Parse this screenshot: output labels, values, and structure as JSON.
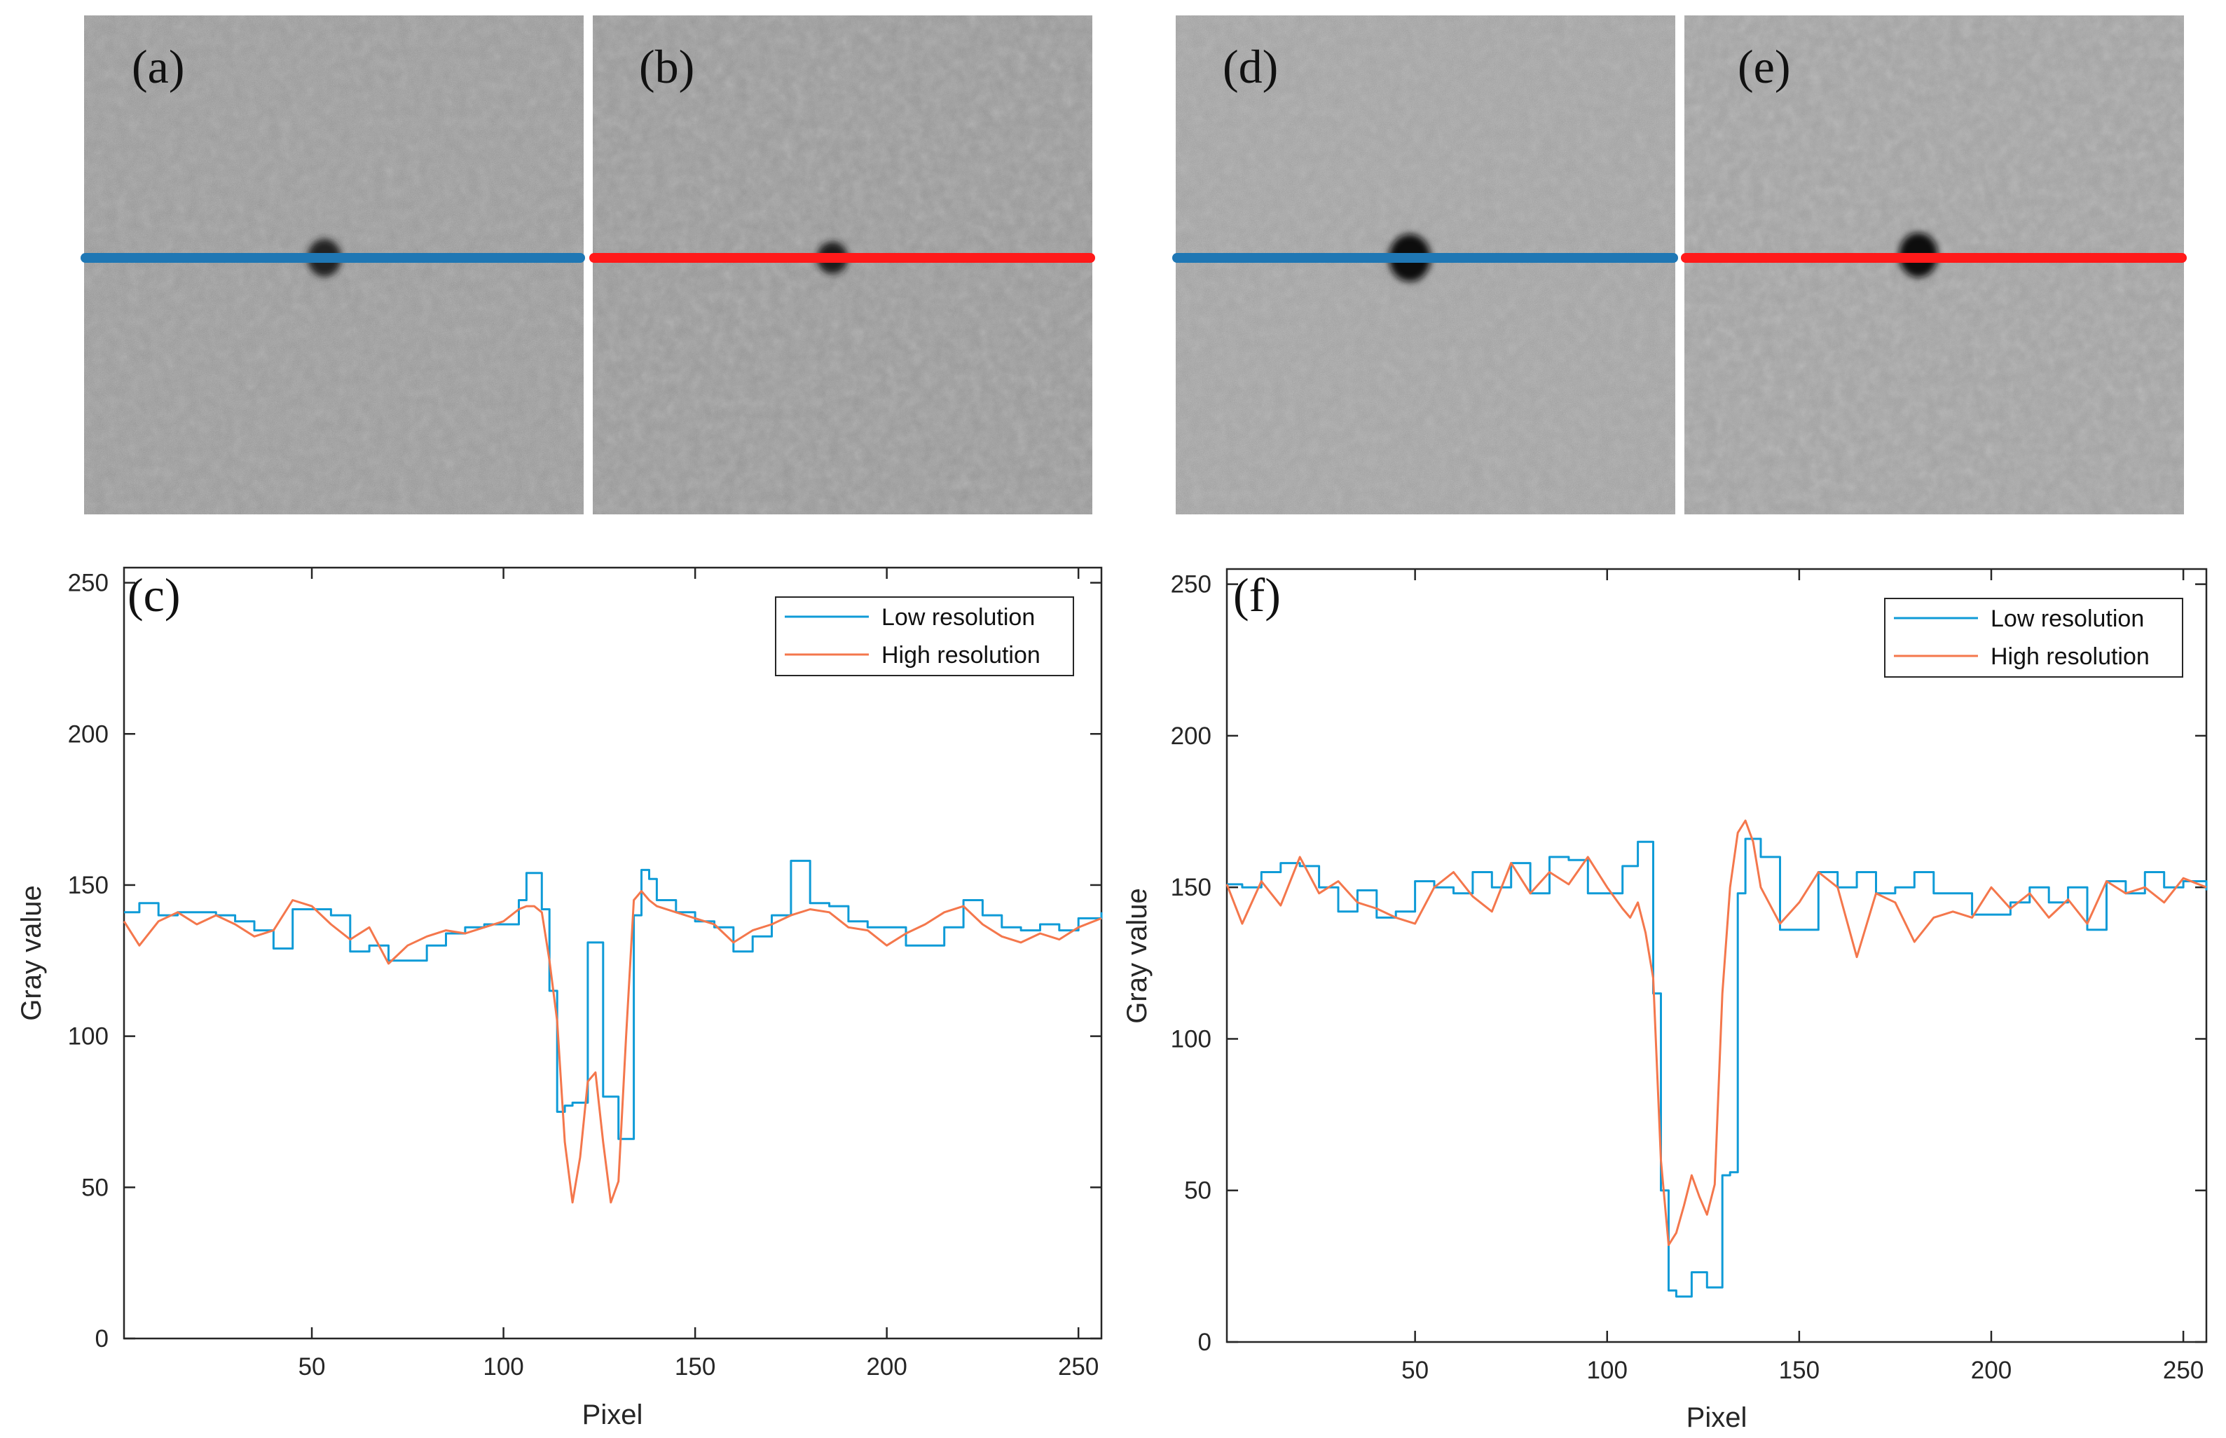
{
  "figure": {
    "image_panels": [
      {
        "letter": "(a)",
        "line_color": "#1f77b4",
        "description_color": "#8f8f8f"
      },
      {
        "letter": "(b)",
        "line_color": "#ff1a1a",
        "description_color": "#8f8f8f"
      },
      {
        "letter": "(d)",
        "line_color": "#1f77b4",
        "description_color": "#8f8f8f"
      },
      {
        "letter": "(e)",
        "line_color": "#ff1a1a",
        "description_color": "#8f8f8f"
      }
    ]
  },
  "colors": {
    "low": "#0f9bd7",
    "high": "#f4774c",
    "profile_low": "#1f77b4",
    "profile_high": "#ff1a1a"
  },
  "chart_data": [
    {
      "type": "line",
      "panel": "(c)",
      "xlabel": "Pixel",
      "ylabel": "Gray value",
      "xlim": [
        1,
        256
      ],
      "ylim": [
        0,
        255
      ],
      "xticks": [
        50,
        100,
        150,
        200,
        250
      ],
      "yticks": [
        0,
        50,
        100,
        150,
        200,
        250
      ],
      "legend_position": "top-right",
      "grid": false,
      "series": [
        {
          "name": "Low resolution",
          "x": [
            1,
            5,
            10,
            15,
            20,
            25,
            30,
            35,
            40,
            45,
            50,
            55,
            60,
            65,
            70,
            75,
            80,
            85,
            90,
            95,
            100,
            104,
            106,
            108,
            110,
            112,
            114,
            116,
            118,
            120,
            122,
            124,
            126,
            128,
            130,
            132,
            134,
            136,
            138,
            140,
            145,
            150,
            155,
            160,
            165,
            170,
            175,
            180,
            185,
            190,
            195,
            200,
            205,
            210,
            215,
            220,
            225,
            230,
            235,
            240,
            245,
            250,
            256
          ],
          "y": [
            141,
            144,
            140,
            141,
            141,
            140,
            138,
            135,
            129,
            142,
            142,
            140,
            128,
            130,
            125,
            125,
            130,
            134,
            136,
            137,
            137,
            145,
            154,
            154,
            142,
            115,
            75,
            77,
            78,
            78,
            131,
            131,
            80,
            80,
            66,
            66,
            140,
            155,
            152,
            145,
            141,
            138,
            136,
            128,
            133,
            140,
            158,
            144,
            143,
            138,
            136,
            136,
            130,
            130,
            136,
            145,
            140,
            136,
            135,
            137,
            135,
            139,
            141
          ]
        },
        {
          "name": "High resolution",
          "x": [
            1,
            5,
            10,
            15,
            20,
            25,
            30,
            35,
            40,
            45,
            50,
            55,
            60,
            65,
            70,
            75,
            80,
            85,
            90,
            95,
            100,
            104,
            106,
            108,
            110,
            112,
            114,
            116,
            118,
            120,
            122,
            124,
            126,
            128,
            130,
            132,
            134,
            136,
            138,
            140,
            145,
            150,
            155,
            160,
            165,
            170,
            175,
            180,
            185,
            190,
            195,
            200,
            205,
            210,
            215,
            220,
            225,
            230,
            235,
            240,
            245,
            250,
            256
          ],
          "y": [
            138,
            130,
            138,
            141,
            137,
            140,
            137,
            133,
            135,
            145,
            143,
            137,
            132,
            136,
            124,
            130,
            133,
            135,
            134,
            136,
            138,
            142,
            143,
            143,
            141,
            125,
            105,
            65,
            45,
            60,
            85,
            88,
            65,
            45,
            52,
            100,
            145,
            148,
            145,
            143,
            141,
            139,
            137,
            131,
            135,
            137,
            140,
            142,
            141,
            136,
            135,
            130,
            134,
            137,
            141,
            143,
            137,
            133,
            131,
            134,
            132,
            136,
            139
          ]
        }
      ]
    },
    {
      "type": "line",
      "panel": "(f)",
      "xlabel": "Pixel",
      "ylabel": "Gray value",
      "xlim": [
        1,
        256
      ],
      "ylim": [
        0,
        255
      ],
      "xticks": [
        50,
        100,
        150,
        200,
        250
      ],
      "yticks": [
        0,
        50,
        100,
        150,
        200,
        250
      ],
      "legend_position": "top-right",
      "grid": false,
      "series": [
        {
          "name": "Low resolution",
          "x": [
            1,
            5,
            10,
            15,
            20,
            25,
            30,
            35,
            40,
            45,
            50,
            55,
            60,
            65,
            70,
            75,
            80,
            85,
            90,
            95,
            100,
            104,
            106,
            108,
            110,
            112,
            114,
            116,
            118,
            120,
            122,
            124,
            126,
            128,
            130,
            132,
            134,
            136,
            138,
            140,
            145,
            150,
            155,
            160,
            165,
            170,
            175,
            180,
            185,
            190,
            195,
            200,
            205,
            210,
            215,
            220,
            225,
            230,
            235,
            240,
            245,
            250,
            256
          ],
          "y": [
            151,
            150,
            155,
            158,
            157,
            150,
            142,
            149,
            140,
            142,
            152,
            150,
            148,
            155,
            150,
            158,
            148,
            160,
            159,
            148,
            148,
            157,
            157,
            165,
            165,
            115,
            50,
            17,
            15,
            15,
            23,
            23,
            18,
            18,
            55,
            56,
            148,
            166,
            166,
            160,
            136,
            136,
            155,
            150,
            155,
            148,
            150,
            155,
            148,
            148,
            141,
            141,
            145,
            150,
            145,
            150,
            136,
            152,
            148,
            155,
            150,
            152,
            149
          ]
        },
        {
          "name": "High resolution",
          "x": [
            1,
            5,
            10,
            15,
            20,
            25,
            30,
            35,
            40,
            45,
            50,
            55,
            60,
            65,
            70,
            75,
            80,
            85,
            90,
            95,
            100,
            104,
            106,
            108,
            110,
            112,
            114,
            116,
            118,
            120,
            122,
            124,
            126,
            128,
            130,
            132,
            134,
            136,
            138,
            140,
            145,
            150,
            155,
            160,
            165,
            170,
            175,
            180,
            185,
            190,
            195,
            200,
            205,
            210,
            215,
            220,
            225,
            230,
            235,
            240,
            245,
            250,
            256
          ],
          "y": [
            151,
            138,
            152,
            144,
            160,
            148,
            152,
            145,
            143,
            140,
            138,
            150,
            155,
            147,
            142,
            158,
            148,
            155,
            151,
            160,
            150,
            143,
            140,
            145,
            135,
            120,
            60,
            32,
            36,
            45,
            55,
            48,
            42,
            52,
            115,
            150,
            168,
            172,
            165,
            150,
            138,
            145,
            155,
            150,
            127,
            148,
            145,
            132,
            140,
            142,
            140,
            150,
            143,
            148,
            140,
            146,
            138,
            152,
            148,
            150,
            145,
            153,
            150
          ]
        }
      ]
    }
  ]
}
